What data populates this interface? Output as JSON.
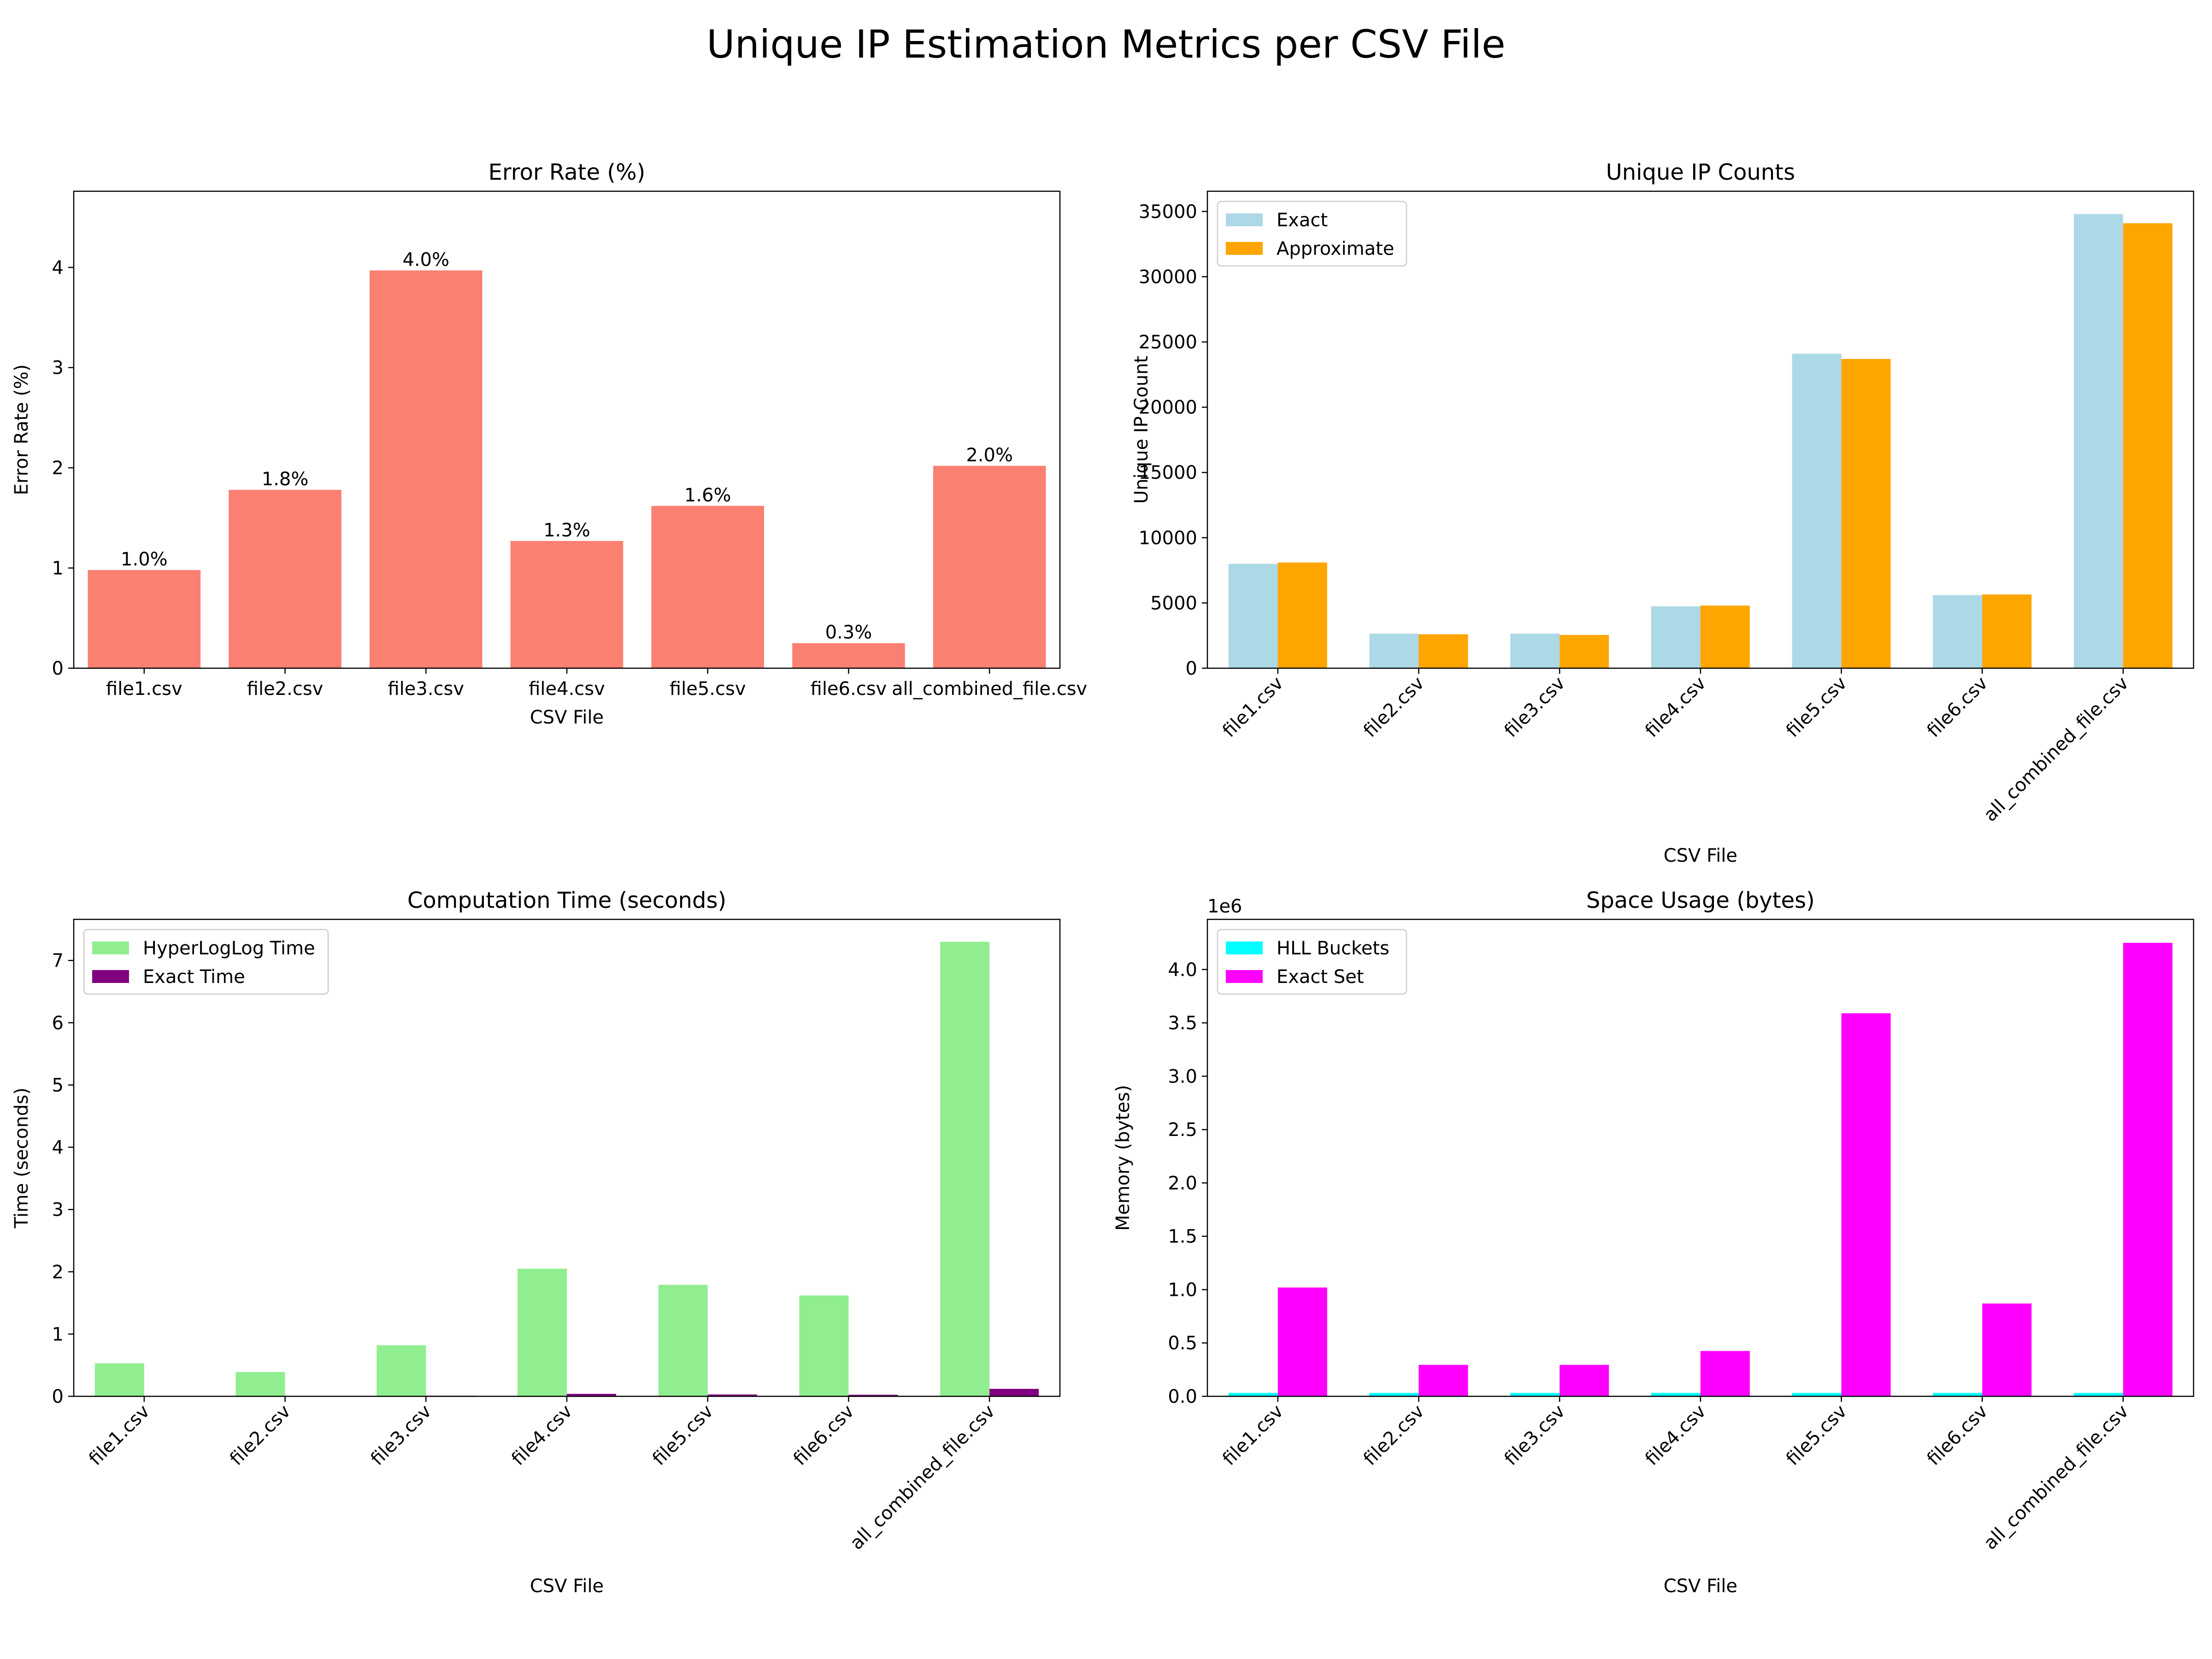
{
  "figure": {
    "title": "Unique IP Estimation Metrics per CSV File"
  },
  "chart_data": [
    {
      "type": "bar",
      "title": "Error Rate (%)",
      "xlabel": "CSV File",
      "ylabel": "Error Rate (%)",
      "categories": [
        "file1.csv",
        "file2.csv",
        "file3.csv",
        "file4.csv",
        "file5.csv",
        "file6.csv",
        "all_combined_file.csv"
      ],
      "series": [
        {
          "values": [
            0.98,
            1.78,
            3.97,
            1.27,
            1.62,
            0.25,
            2.02
          ],
          "color": "#fa8072"
        }
      ],
      "data_labels": [
        "1.0%",
        "1.8%",
        "4.0%",
        "1.3%",
        "1.6%",
        "0.3%",
        "2.0%"
      ],
      "ylim": [
        0,
        4.76
      ],
      "yticks": [
        0,
        1,
        2,
        3,
        4
      ],
      "tick_rotation": 0,
      "legend": null
    },
    {
      "type": "bar",
      "title": "Unique IP Counts",
      "xlabel": "CSV File",
      "ylabel": "Unique IP Count",
      "categories": [
        "file1.csv",
        "file2.csv",
        "file3.csv",
        "file4.csv",
        "file5.csv",
        "file6.csv",
        "all_combined_file.csv"
      ],
      "series": [
        {
          "name": "Exact",
          "values": [
            8000,
            2650,
            2650,
            4750,
            24100,
            5600,
            34800
          ],
          "color": "#add8e6"
        },
        {
          "name": "Approximate",
          "values": [
            8100,
            2600,
            2550,
            4800,
            23700,
            5650,
            34100
          ],
          "color": "#ffa500"
        }
      ],
      "ylim": [
        0,
        36550
      ],
      "yticks": [
        0,
        5000,
        10000,
        15000,
        20000,
        25000,
        30000,
        35000
      ],
      "tick_rotation": 45,
      "legend": "top-left"
    },
    {
      "type": "bar",
      "title": "Computation Time (seconds)",
      "xlabel": "CSV File",
      "ylabel": "Time (seconds)",
      "categories": [
        "file1.csv",
        "file2.csv",
        "file3.csv",
        "file4.csv",
        "file5.csv",
        "file6.csv",
        "all_combined_file.csv"
      ],
      "series": [
        {
          "name": "HyperLogLog Time",
          "values": [
            0.53,
            0.39,
            0.82,
            2.05,
            1.79,
            1.62,
            7.3
          ],
          "color": "#90ee90"
        },
        {
          "name": "Exact Time",
          "values": [
            0.005,
            0.004,
            0.01,
            0.04,
            0.03,
            0.025,
            0.12
          ],
          "color": "#800080"
        }
      ],
      "ylim": [
        0,
        7.66
      ],
      "yticks": [
        0,
        1,
        2,
        3,
        4,
        5,
        6,
        7
      ],
      "tick_rotation": 45,
      "legend": "top-left"
    },
    {
      "type": "bar",
      "title": "Space Usage (bytes)",
      "xlabel": "",
      "ylabel": "Memory (bytes)",
      "offset_label": "1e6",
      "tick_scale": 1000000,
      "categories": [
        "file1.csv",
        "file2.csv",
        "file3.csv",
        "file4.csv",
        "file5.csv",
        "file6.csv",
        "all_combined_file.csv"
      ],
      "series": [
        {
          "name": "HLL Buckets",
          "values": [
            32000,
            32000,
            32000,
            32000,
            32000,
            32000,
            32000
          ],
          "color": "#00ffff"
        },
        {
          "name": "Exact Set",
          "values": [
            1020000,
            295000,
            295000,
            425000,
            3590000,
            870000,
            4250000
          ],
          "color": "#ff00ff"
        }
      ],
      "ylim": [
        0,
        4470000
      ],
      "yticks": [
        0,
        500000,
        1000000,
        1500000,
        2000000,
        2500000,
        3000000,
        3500000,
        4000000
      ],
      "tick_rotation": 45,
      "legend": "top-left"
    }
  ],
  "bottom_labels": {
    "time_xlabel": "CSV File",
    "space_xlabel": "CSV File"
  }
}
